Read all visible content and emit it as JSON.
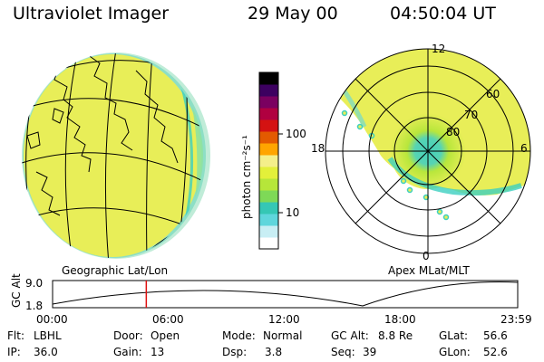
{
  "header": {
    "title": "Ultraviolet Imager",
    "date": "29 May 00",
    "time": "04:50:04 UT"
  },
  "panels": {
    "geo_label": "Geographic Lat/Lon",
    "apex_label": "Apex MLat/MLT"
  },
  "colorbar": {
    "unit_label": "photon cm⁻²s⁻¹",
    "ticks": [
      {
        "label": "100",
        "value": 100
      },
      {
        "label": "10",
        "value": 10
      }
    ],
    "colors": [
      "#ffffff",
      "#c8eef4",
      "#5fd6dc",
      "#35c7b5",
      "#7ed957",
      "#b6e63a",
      "#e3f03a",
      "#f4ef8a",
      "#ffa500",
      "#e35a00",
      "#d41212",
      "#b00040",
      "#7a0060",
      "#3c0060",
      "#000000"
    ]
  },
  "polar": {
    "lat_labels": [
      "80",
      "70",
      "60"
    ],
    "mlt_labels": {
      "top": "12",
      "left": "18",
      "right": "6",
      "bottom": "0"
    }
  },
  "altitude_plot": {
    "axis_label": "GC Alt",
    "y_labels": [
      "9.0",
      "1.8"
    ],
    "time_ticks": [
      "00:00",
      "06:00",
      "12:00",
      "18:00",
      "23:59"
    ],
    "marker_time_hours": 4.835
  },
  "info": {
    "row1": [
      {
        "key": "Flt:",
        "value": "LBHL"
      },
      {
        "key": "Door:",
        "value": "Open"
      },
      {
        "key": "Mode:",
        "value": "Normal"
      },
      {
        "key": "GC Alt:",
        "value": "8.8 Re"
      },
      {
        "key": "GLat:",
        "value": "56.6"
      }
    ],
    "row2": [
      {
        "key": "IP:",
        "value": "36.0"
      },
      {
        "key": "Gain:",
        "value": "13"
      },
      {
        "key": "Dsp:",
        "value": "3.8"
      },
      {
        "key": "Seq:",
        "value": "39"
      },
      {
        "key": "GLon:",
        "value": "52.6"
      }
    ]
  },
  "colors": {
    "aurora_fill": "#e8ee58",
    "aurora_edge": "#8ee68a",
    "oval_teal": "#3ccfc0",
    "marker_red": "#e01010"
  }
}
